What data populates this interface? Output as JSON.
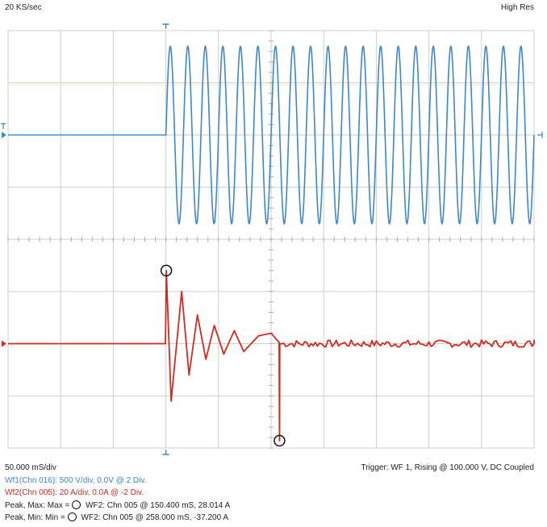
{
  "header": {
    "sample_rate": "20 KS/sec",
    "mode": "High Res"
  },
  "footer": {
    "timebase": "50.000 mS/div",
    "trigger": "Trigger: WF 1, Rising @ 100.000 V, DC Coupled",
    "wf1_settings": "Wf1(Chn 016): 500 V/div, 0.0V @ 2 Div.",
    "wf2_settings": "Wf2(Chn 005): 20 A/div, 0.0A @ -2 Div.",
    "peak_max_label": "Peak, Max: Max =",
    "peak_max_value": "WF2: Chn 005 @ 150.400 mS, 28.014 A",
    "peak_min_label": "Peak, Min: Min =",
    "peak_min_value": "WF2: Chn 005 @ 258.000 mS, -37.200 A"
  },
  "colors": {
    "wf1": "#3d87cf",
    "wf2": "#d42a20",
    "grid": "#cfcfcf",
    "marker": "#111111"
  },
  "chart_data": {
    "type": "line",
    "x_unit": "mS",
    "xlim": [
      0,
      500
    ],
    "trigger_time": 150,
    "grid": true,
    "series": [
      {
        "name": "Wf1(Chn 016)",
        "unit": "V",
        "volts_per_div": 500,
        "offset_div": 2,
        "segments": [
          {
            "t": [
              0,
              150
            ],
            "value": 0
          },
          {
            "t": [
              150,
              500
            ],
            "amplitude": 850,
            "frequency_hz": 60
          }
        ]
      },
      {
        "name": "Wf2(Chn 005)",
        "unit": "A",
        "amps_per_div": 20,
        "offset_div": -2,
        "baseline": 0,
        "peaks": [
          {
            "t": 150.4,
            "value": 28.014
          },
          {
            "t": 155.0,
            "value": -22.0
          },
          {
            "t": 165.0,
            "value": 20.0
          },
          {
            "t": 172.0,
            "value": -12.0
          },
          {
            "t": 180.0,
            "value": 11.0
          },
          {
            "t": 188.0,
            "value": -6.0
          },
          {
            "t": 196.0,
            "value": 7.0
          },
          {
            "t": 205.0,
            "value": -4.0
          },
          {
            "t": 215.0,
            "value": 5.0
          },
          {
            "t": 224.0,
            "value": -3.0
          },
          {
            "t": 238.0,
            "value": 3.0
          },
          {
            "t": 250.0,
            "value": 4.0
          },
          {
            "t": 258.0,
            "value": -37.2
          }
        ]
      }
    ],
    "markers": [
      {
        "label": "Max",
        "series": "Wf2(Chn 005)",
        "t": 150.4,
        "value": 28.014
      },
      {
        "label": "Min",
        "series": "Wf2(Chn 005)",
        "t": 258.0,
        "value": -37.2
      }
    ]
  }
}
